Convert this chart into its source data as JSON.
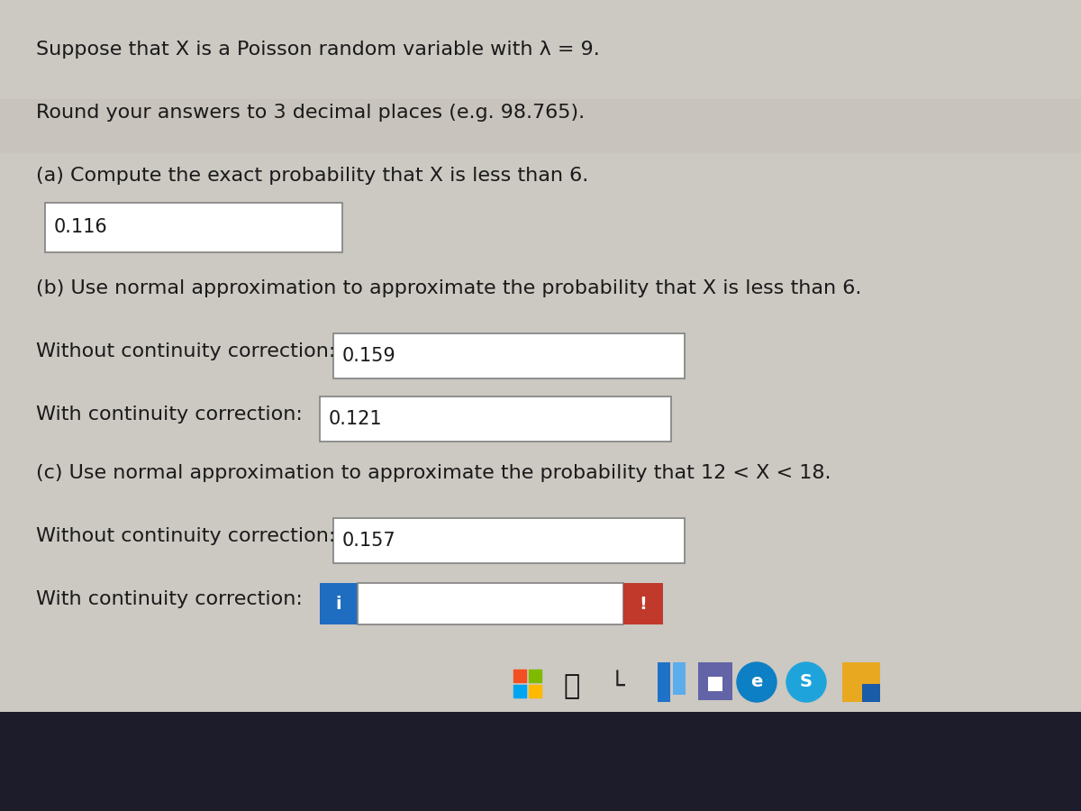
{
  "bg_color": "#ccc8c2",
  "content_bg": "#d8d3cd",
  "text_color": "#1a1a1a",
  "title_line1": "Suppose that X is a Poisson random variable with λ = 9.",
  "title_line2": "Round your answers to 3 decimal places (e.g. 98.765).",
  "part_a_label": "(a) Compute the exact probability that X is less than 6.",
  "part_a_answer": "0.116",
  "part_b_label": "(b) Use normal approximation to approximate the probability that X is less than 6.",
  "part_b_without_label": "Without continuity correction:",
  "part_b_without_answer": "0.159",
  "part_b_with_label": "With continuity correction:",
  "part_b_with_answer": "0.121",
  "part_c_label": "(c) Use normal approximation to approximate the probability that 12 < X < 18.",
  "part_c_without_label": "Without continuity correction:",
  "part_c_without_answer": "0.157",
  "part_c_with_label": "With continuity correction:",
  "part_c_with_answer": "",
  "box_facecolor": "#ffffff",
  "box_edgecolor": "#888888",
  "info_box_color": "#1e6dc0",
  "info_box_text": "i",
  "alert_box_color": "#c0392b",
  "alert_box_text": "!",
  "taskbar_bg": "#1c1c2a",
  "taskbar_strip_bg": "#c8c3bc",
  "font_size_main": 16,
  "font_size_answer": 15,
  "win_colors": [
    "#f25022",
    "#7fba00",
    "#00a4ef",
    "#ffb900"
  ]
}
